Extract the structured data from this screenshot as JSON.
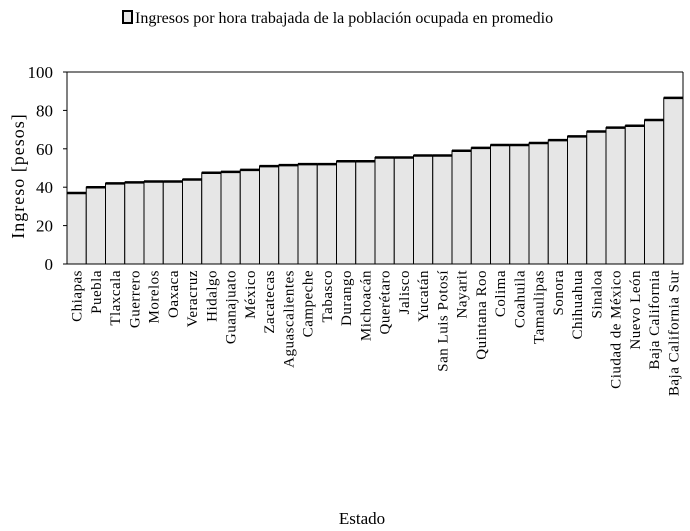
{
  "chart_data": {
    "type": "bar",
    "legend": "Ingresos por hora trabajada de la población ocupada en promedio",
    "xlabel": "Estado",
    "ylabel": "Ingreso [pesos]",
    "ylim": [
      0,
      100
    ],
    "yticks": [
      0,
      20,
      40,
      60,
      80,
      100
    ],
    "grid": false,
    "bar_color": "#e6e6e6",
    "categories": [
      "Chiapas",
      "Puebla",
      "Tlaxcala",
      "Guerrero",
      "Morelos",
      "Oaxaca",
      "Veracruz",
      "Hidalgo",
      "Guanajuato",
      "México",
      "Zacatecas",
      "Aguascalientes",
      "Campeche",
      "Tabasco",
      "Durango",
      "Michoacán",
      "Querétaro",
      "Jalisco",
      "Yucatán",
      "San Luis Potosí",
      "Nayarit",
      "Quintana Roo",
      "Colima",
      "Coahuila",
      "Tamaulipas",
      "Sonora",
      "Chihuahua",
      "Sinaloa",
      "Ciudad de México",
      "Nuevo León",
      "Baja California",
      "Baja California Sur"
    ],
    "values": [
      37,
      40,
      42,
      42.5,
      43,
      43,
      44,
      47.5,
      48,
      49,
      51,
      51.5,
      52,
      52,
      53.5,
      53.5,
      55.5,
      55.5,
      56.5,
      56.5,
      59,
      60.5,
      62,
      62,
      63,
      64.5,
      66.5,
      69,
      71,
      72,
      75,
      86.5
    ]
  }
}
